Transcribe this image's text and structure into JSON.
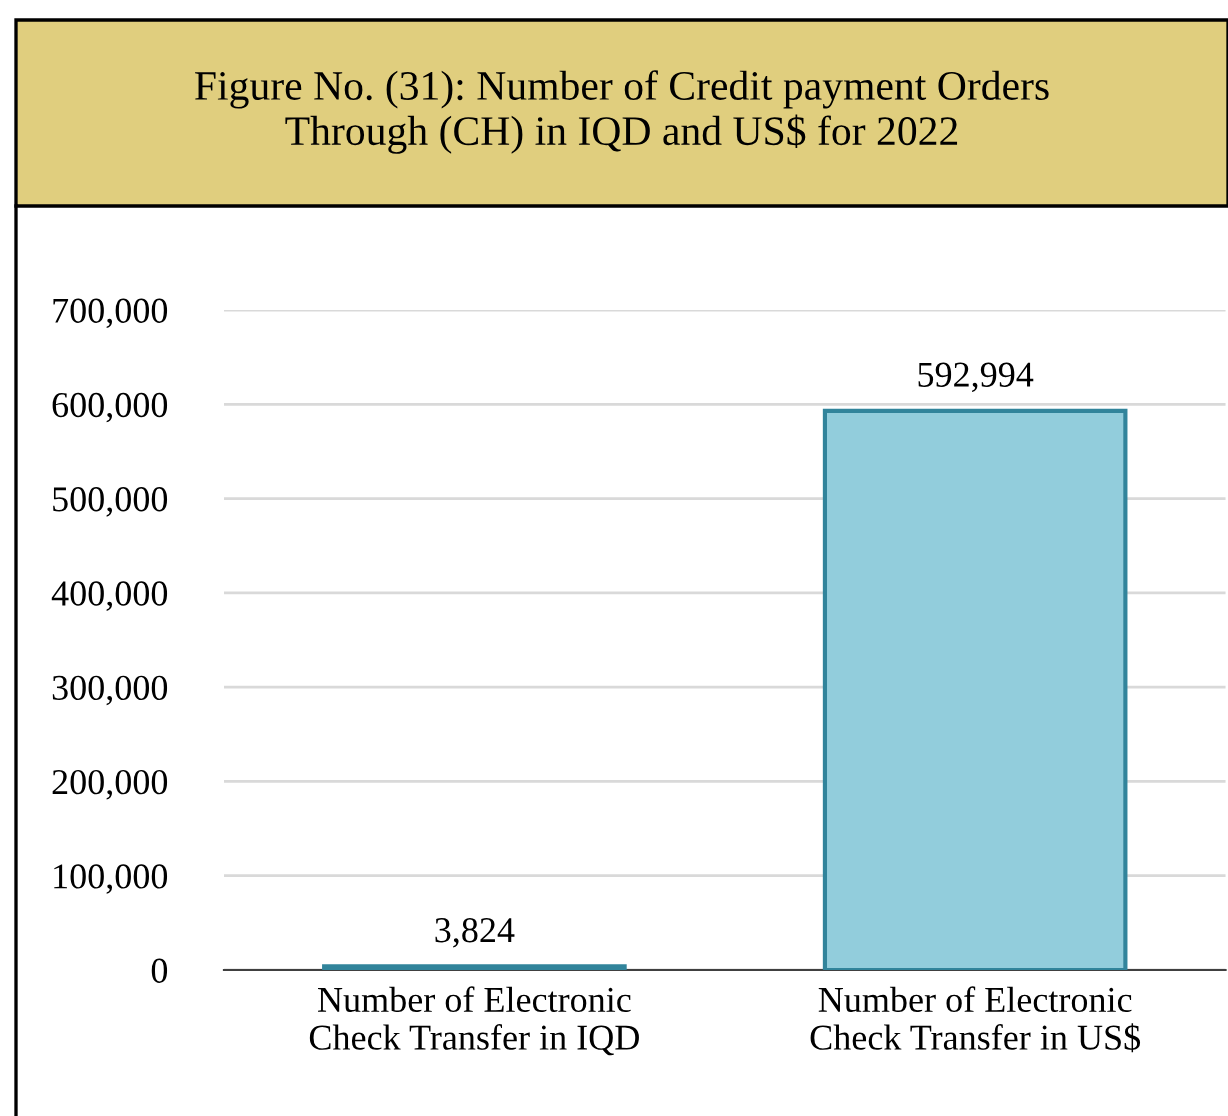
{
  "chart_data": {
    "type": "bar",
    "title": "Figure No. (31): Number of Credit payment Orders\nThrough (CH) in IQD and US$ for 2022",
    "categories": [
      "Number of Electronic\nCheck Transfer in IQD",
      "Number of Electronic\nCheck Transfer in US$"
    ],
    "values": [
      3824,
      592994
    ],
    "color": "#92cddc",
    "ylim": [
      0,
      700000
    ],
    "yticks": [
      {
        "value": 0,
        "label": "0"
      },
      {
        "value": 100000,
        "label": "100,000"
      },
      {
        "value": 200000,
        "label": "200,000"
      },
      {
        "value": 300000,
        "label": "300,000"
      },
      {
        "value": 400000,
        "label": "400,000"
      },
      {
        "value": 500000,
        "label": "500,000"
      },
      {
        "value": 600000,
        "label": "600,000"
      },
      {
        "value": 700000,
        "label": "700,000"
      }
    ],
    "value_labels": [
      "3,824",
      "592,994"
    ],
    "grid": "y"
  }
}
